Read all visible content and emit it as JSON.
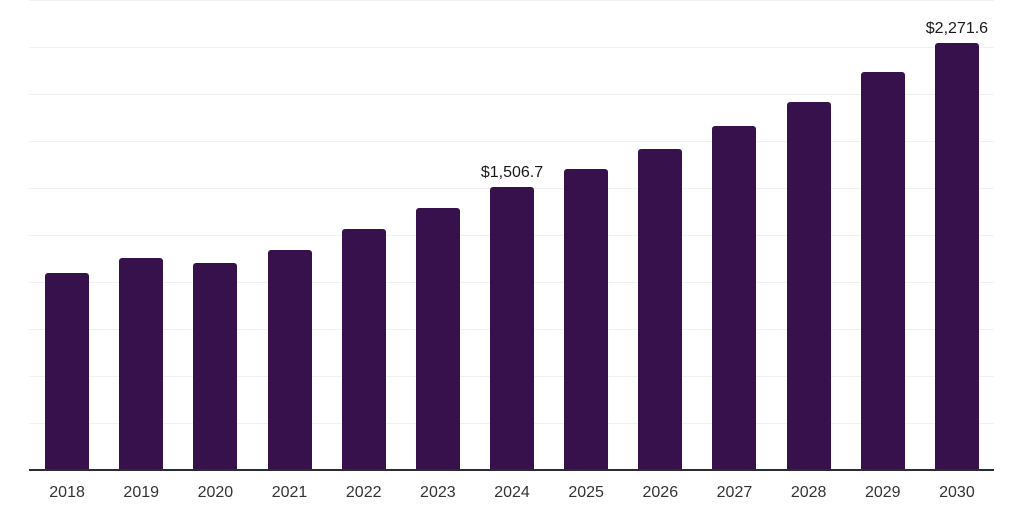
{
  "chart_data": {
    "type": "bar",
    "title": "",
    "xlabel": "",
    "ylabel": "",
    "categories": [
      "2018",
      "2019",
      "2020",
      "2021",
      "2022",
      "2023",
      "2024",
      "2025",
      "2026",
      "2027",
      "2028",
      "2029",
      "2030"
    ],
    "values": [
      1050,
      1129,
      1101,
      1171,
      1283,
      1393,
      1506.7,
      1600,
      1707,
      1831,
      1957,
      2117,
      2271.6
    ],
    "data_labels": {
      "2024": "$1,506.7",
      "2030": "$2,271.6"
    },
    "ylim": [
      0,
      2500
    ],
    "gridline_step": 250,
    "grid": true,
    "legend": false,
    "y_axis_tick_labels_visible": false,
    "colors": {
      "bar": "#36114B",
      "axis_line": "#2b2b33",
      "gridline": "#f0f0f0",
      "data_label_text": "#1a1a1a",
      "tick_label_text": "#333333",
      "background": "#ffffff"
    }
  }
}
